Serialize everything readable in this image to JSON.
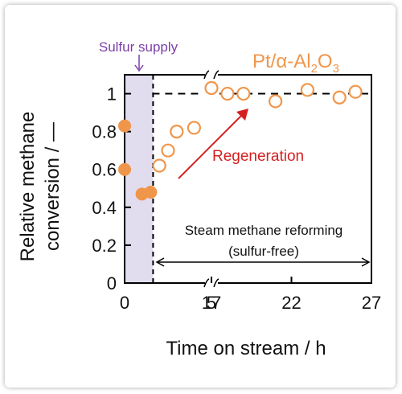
{
  "chart_data": {
    "type": "scatter",
    "title": "",
    "xlabel": "Time on stream / h",
    "ylabel_line1": "Relative methane",
    "ylabel_line2": "conversion / —",
    "xlim": [
      0,
      27
    ],
    "ylim": [
      0,
      1.1
    ],
    "xaxis_break": [
      5,
      17
    ],
    "x_ticks": [
      0,
      5,
      17,
      22,
      27
    ],
    "y_ticks": [
      0,
      0.2,
      0.4,
      0.6,
      0.8,
      1
    ],
    "y_tick_labels": [
      "0",
      "0.2",
      "0.4",
      "0.6",
      "0.8",
      "1"
    ],
    "grid": false,
    "legend_label": "Pt/α-Al",
    "legend_sub1": "2",
    "legend_mid": "O",
    "legend_sub2": "3",
    "series": [
      {
        "name": "Pt/α-Al2O3",
        "color": "#f0964b",
        "filled": {
          "x": [
            0,
            0,
            1,
            1.5
          ],
          "y": [
            0.83,
            0.6,
            0.47,
            0.48
          ]
        },
        "open": {
          "x": [
            2,
            2.5,
            3,
            4,
            17,
            18,
            19,
            21,
            23,
            25,
            26
          ],
          "y": [
            0.62,
            0.7,
            0.8,
            0.82,
            1.03,
            1.0,
            1.0,
            0.96,
            1.02,
            0.98,
            1.01
          ]
        }
      }
    ],
    "reference_line_y": 1,
    "sulfur_region": [
      0,
      1.5
    ],
    "annotations": {
      "sulfur_supply": "Sulfur supply",
      "regeneration": "Regeneration",
      "smr_line1": "Steam methane reforming",
      "smr_line2": "(sulfur-free)"
    },
    "colors": {
      "sulfur": "#7a3fa9",
      "sulfur_band": "#e2dcef",
      "regeneration": "#d52020",
      "marker": "#f0964b"
    }
  }
}
